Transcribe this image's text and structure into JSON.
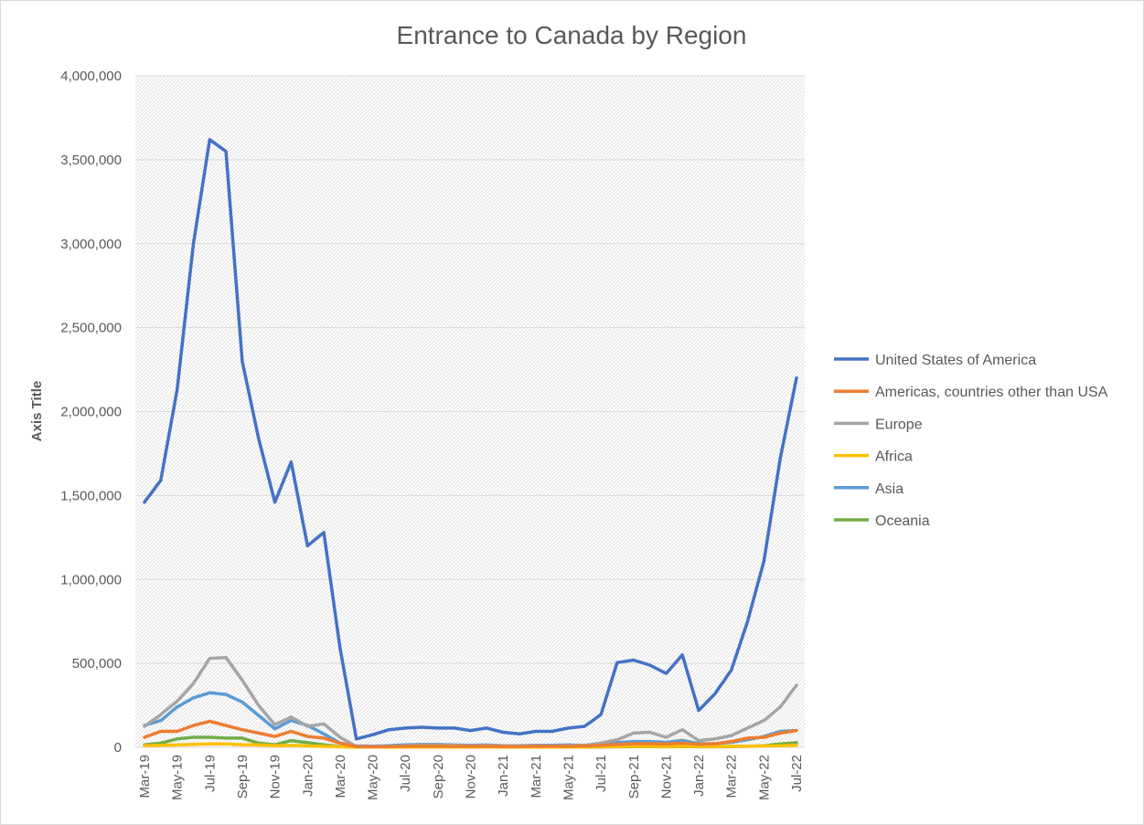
{
  "chart_data": {
    "type": "line",
    "title": "Entrance to Canada by Region",
    "xlabel": "",
    "ylabel": "Axis Title",
    "ylim": [
      0,
      4000000
    ],
    "yticks": [
      0,
      500000,
      1000000,
      1500000,
      2000000,
      2500000,
      3000000,
      3500000,
      4000000
    ],
    "ytick_labels": [
      "0",
      "500,000",
      "1,000,000",
      "1,500,000",
      "2,000,000",
      "2,500,000",
      "3,000,000",
      "3,500,000",
      "4,000,000"
    ],
    "x": [
      "Mar-19",
      "Apr-19",
      "May-19",
      "Jun-19",
      "Jul-19",
      "Aug-19",
      "Sep-19",
      "Oct-19",
      "Nov-19",
      "Dec-19",
      "Jan-20",
      "Feb-20",
      "Mar-20",
      "Apr-20",
      "May-20",
      "Jun-20",
      "Jul-20",
      "Aug-20",
      "Sep-20",
      "Oct-20",
      "Nov-20",
      "Dec-20",
      "Jan-21",
      "Feb-21",
      "Mar-21",
      "Apr-21",
      "May-21",
      "Jun-21",
      "Jul-21",
      "Aug-21",
      "Sep-21",
      "Oct-21",
      "Nov-21",
      "Dec-21",
      "Jan-22",
      "Feb-22",
      "Mar-22",
      "Apr-22",
      "May-22",
      "Jun-22",
      "Jul-22"
    ],
    "x_tick_labels": [
      "Mar-19",
      "May-19",
      "Jul-19",
      "Sep-19",
      "Nov-19",
      "Jan-20",
      "Mar-20",
      "May-20",
      "Jul-20",
      "Sep-20",
      "Nov-20",
      "Jan-21",
      "Mar-21",
      "May-21",
      "Jul-21",
      "Sep-21",
      "Nov-21",
      "Jan-22",
      "Mar-22",
      "May-22",
      "Jul-22"
    ],
    "grid": true,
    "legend_position": "right",
    "series": [
      {
        "name": "United States of America",
        "color": "#4472c4",
        "values": [
          1460000,
          1590000,
          2130000,
          3000000,
          3620000,
          3550000,
          2300000,
          1840000,
          1460000,
          1700000,
          1200000,
          1280000,
          590000,
          50000,
          75000,
          105000,
          115000,
          120000,
          115000,
          115000,
          100000,
          115000,
          90000,
          80000,
          95000,
          95000,
          115000,
          125000,
          195000,
          505000,
          520000,
          490000,
          440000,
          550000,
          220000,
          320000,
          460000,
          750000,
          1110000,
          1720000,
          2200000
        ]
      },
      {
        "name": "Americas, countries other than USA",
        "color": "#ed7d31",
        "values": [
          60000,
          95000,
          95000,
          130000,
          155000,
          130000,
          105000,
          85000,
          65000,
          95000,
          65000,
          55000,
          25000,
          5000,
          4000,
          5000,
          6000,
          7000,
          7000,
          6000,
          6000,
          7000,
          5000,
          5000,
          6000,
          6000,
          7000,
          8000,
          12000,
          18000,
          22000,
          22000,
          20000,
          25000,
          18000,
          22000,
          35000,
          55000,
          60000,
          85000,
          100000
        ]
      },
      {
        "name": "Europe",
        "color": "#a5a5a5",
        "values": [
          125000,
          195000,
          275000,
          380000,
          530000,
          535000,
          400000,
          250000,
          135000,
          180000,
          125000,
          140000,
          60000,
          5000,
          4000,
          5000,
          10000,
          15000,
          15000,
          12000,
          10000,
          12000,
          10000,
          8000,
          10000,
          8000,
          10000,
          12000,
          25000,
          45000,
          85000,
          90000,
          60000,
          105000,
          40000,
          50000,
          70000,
          115000,
          160000,
          240000,
          370000
        ]
      },
      {
        "name": "Africa",
        "color": "#ffc000",
        "values": [
          10000,
          12000,
          14000,
          18000,
          20000,
          20000,
          16000,
          14000,
          10000,
          12000,
          8000,
          6000,
          3000,
          1000,
          1000,
          1000,
          1000,
          1500,
          1500,
          1500,
          1500,
          1500,
          1500,
          1500,
          1500,
          1500,
          2000,
          2000,
          3000,
          5000,
          6000,
          6000,
          5000,
          6000,
          5000,
          5000,
          6000,
          7000,
          8000,
          10000,
          12000
        ]
      },
      {
        "name": "Asia",
        "color": "#5b9bd5",
        "values": [
          130000,
          160000,
          240000,
          295000,
          325000,
          315000,
          270000,
          190000,
          110000,
          160000,
          130000,
          80000,
          25000,
          8000,
          7000,
          10000,
          15000,
          18000,
          18000,
          14000,
          12000,
          14000,
          10000,
          10000,
          12000,
          12000,
          14000,
          12000,
          20000,
          28000,
          35000,
          35000,
          30000,
          42000,
          22000,
          22000,
          30000,
          45000,
          65000,
          95000,
          100000
        ]
      },
      {
        "name": "Oceania",
        "color": "#70ad47",
        "values": [
          15000,
          25000,
          50000,
          60000,
          60000,
          55000,
          55000,
          25000,
          15000,
          40000,
          28000,
          15000,
          5000,
          1000,
          1000,
          1000,
          1000,
          1500,
          1500,
          1500,
          1500,
          1500,
          1500,
          1000,
          1000,
          1000,
          1000,
          1000,
          2000,
          3000,
          4000,
          4000,
          3000,
          5000,
          3000,
          3000,
          5000,
          6000,
          10000,
          20000,
          28000
        ]
      }
    ]
  }
}
